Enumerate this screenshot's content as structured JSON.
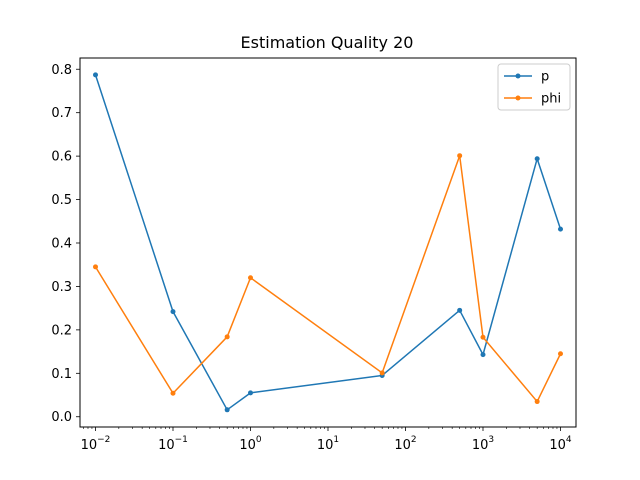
{
  "chart_data": {
    "type": "line",
    "title": "Estimation Quality 20",
    "xlabel": "",
    "ylabel": "",
    "x_scale": "log",
    "x": [
      0.01,
      0.1,
      0.5,
      1,
      50,
      500,
      1000,
      5000,
      10000
    ],
    "xlim": [
      0.00631,
      15849
    ],
    "ylim": [
      -0.0236,
      0.8259
    ],
    "x_ticks": [
      0.01,
      0.1,
      1,
      10,
      100,
      1000,
      10000
    ],
    "x_tick_labels": [
      {
        "base": "10",
        "exp": "−2"
      },
      {
        "base": "10",
        "exp": "−1"
      },
      {
        "base": "10",
        "exp": "0"
      },
      {
        "base": "10",
        "exp": "1"
      },
      {
        "base": "10",
        "exp": "2"
      },
      {
        "base": "10",
        "exp": "3"
      },
      {
        "base": "10",
        "exp": "4"
      }
    ],
    "y_ticks": [
      0.0,
      0.1,
      0.2,
      0.3,
      0.4,
      0.5,
      0.6,
      0.7,
      0.8
    ],
    "y_tick_labels": [
      "0.0",
      "0.1",
      "0.2",
      "0.3",
      "0.4",
      "0.5",
      "0.6",
      "0.7",
      "0.8"
    ],
    "grid": false,
    "legend_position": "top-right",
    "series": [
      {
        "name": "p",
        "color": "#1f77b4",
        "values": [
          0.787,
          0.242,
          0.016,
          0.055,
          0.095,
          0.245,
          0.143,
          0.594,
          0.432
        ]
      },
      {
        "name": "phi",
        "color": "#ff7f0e",
        "values": [
          0.345,
          0.054,
          0.184,
          0.32,
          0.101,
          0.601,
          0.183,
          0.035,
          0.145
        ]
      }
    ]
  }
}
